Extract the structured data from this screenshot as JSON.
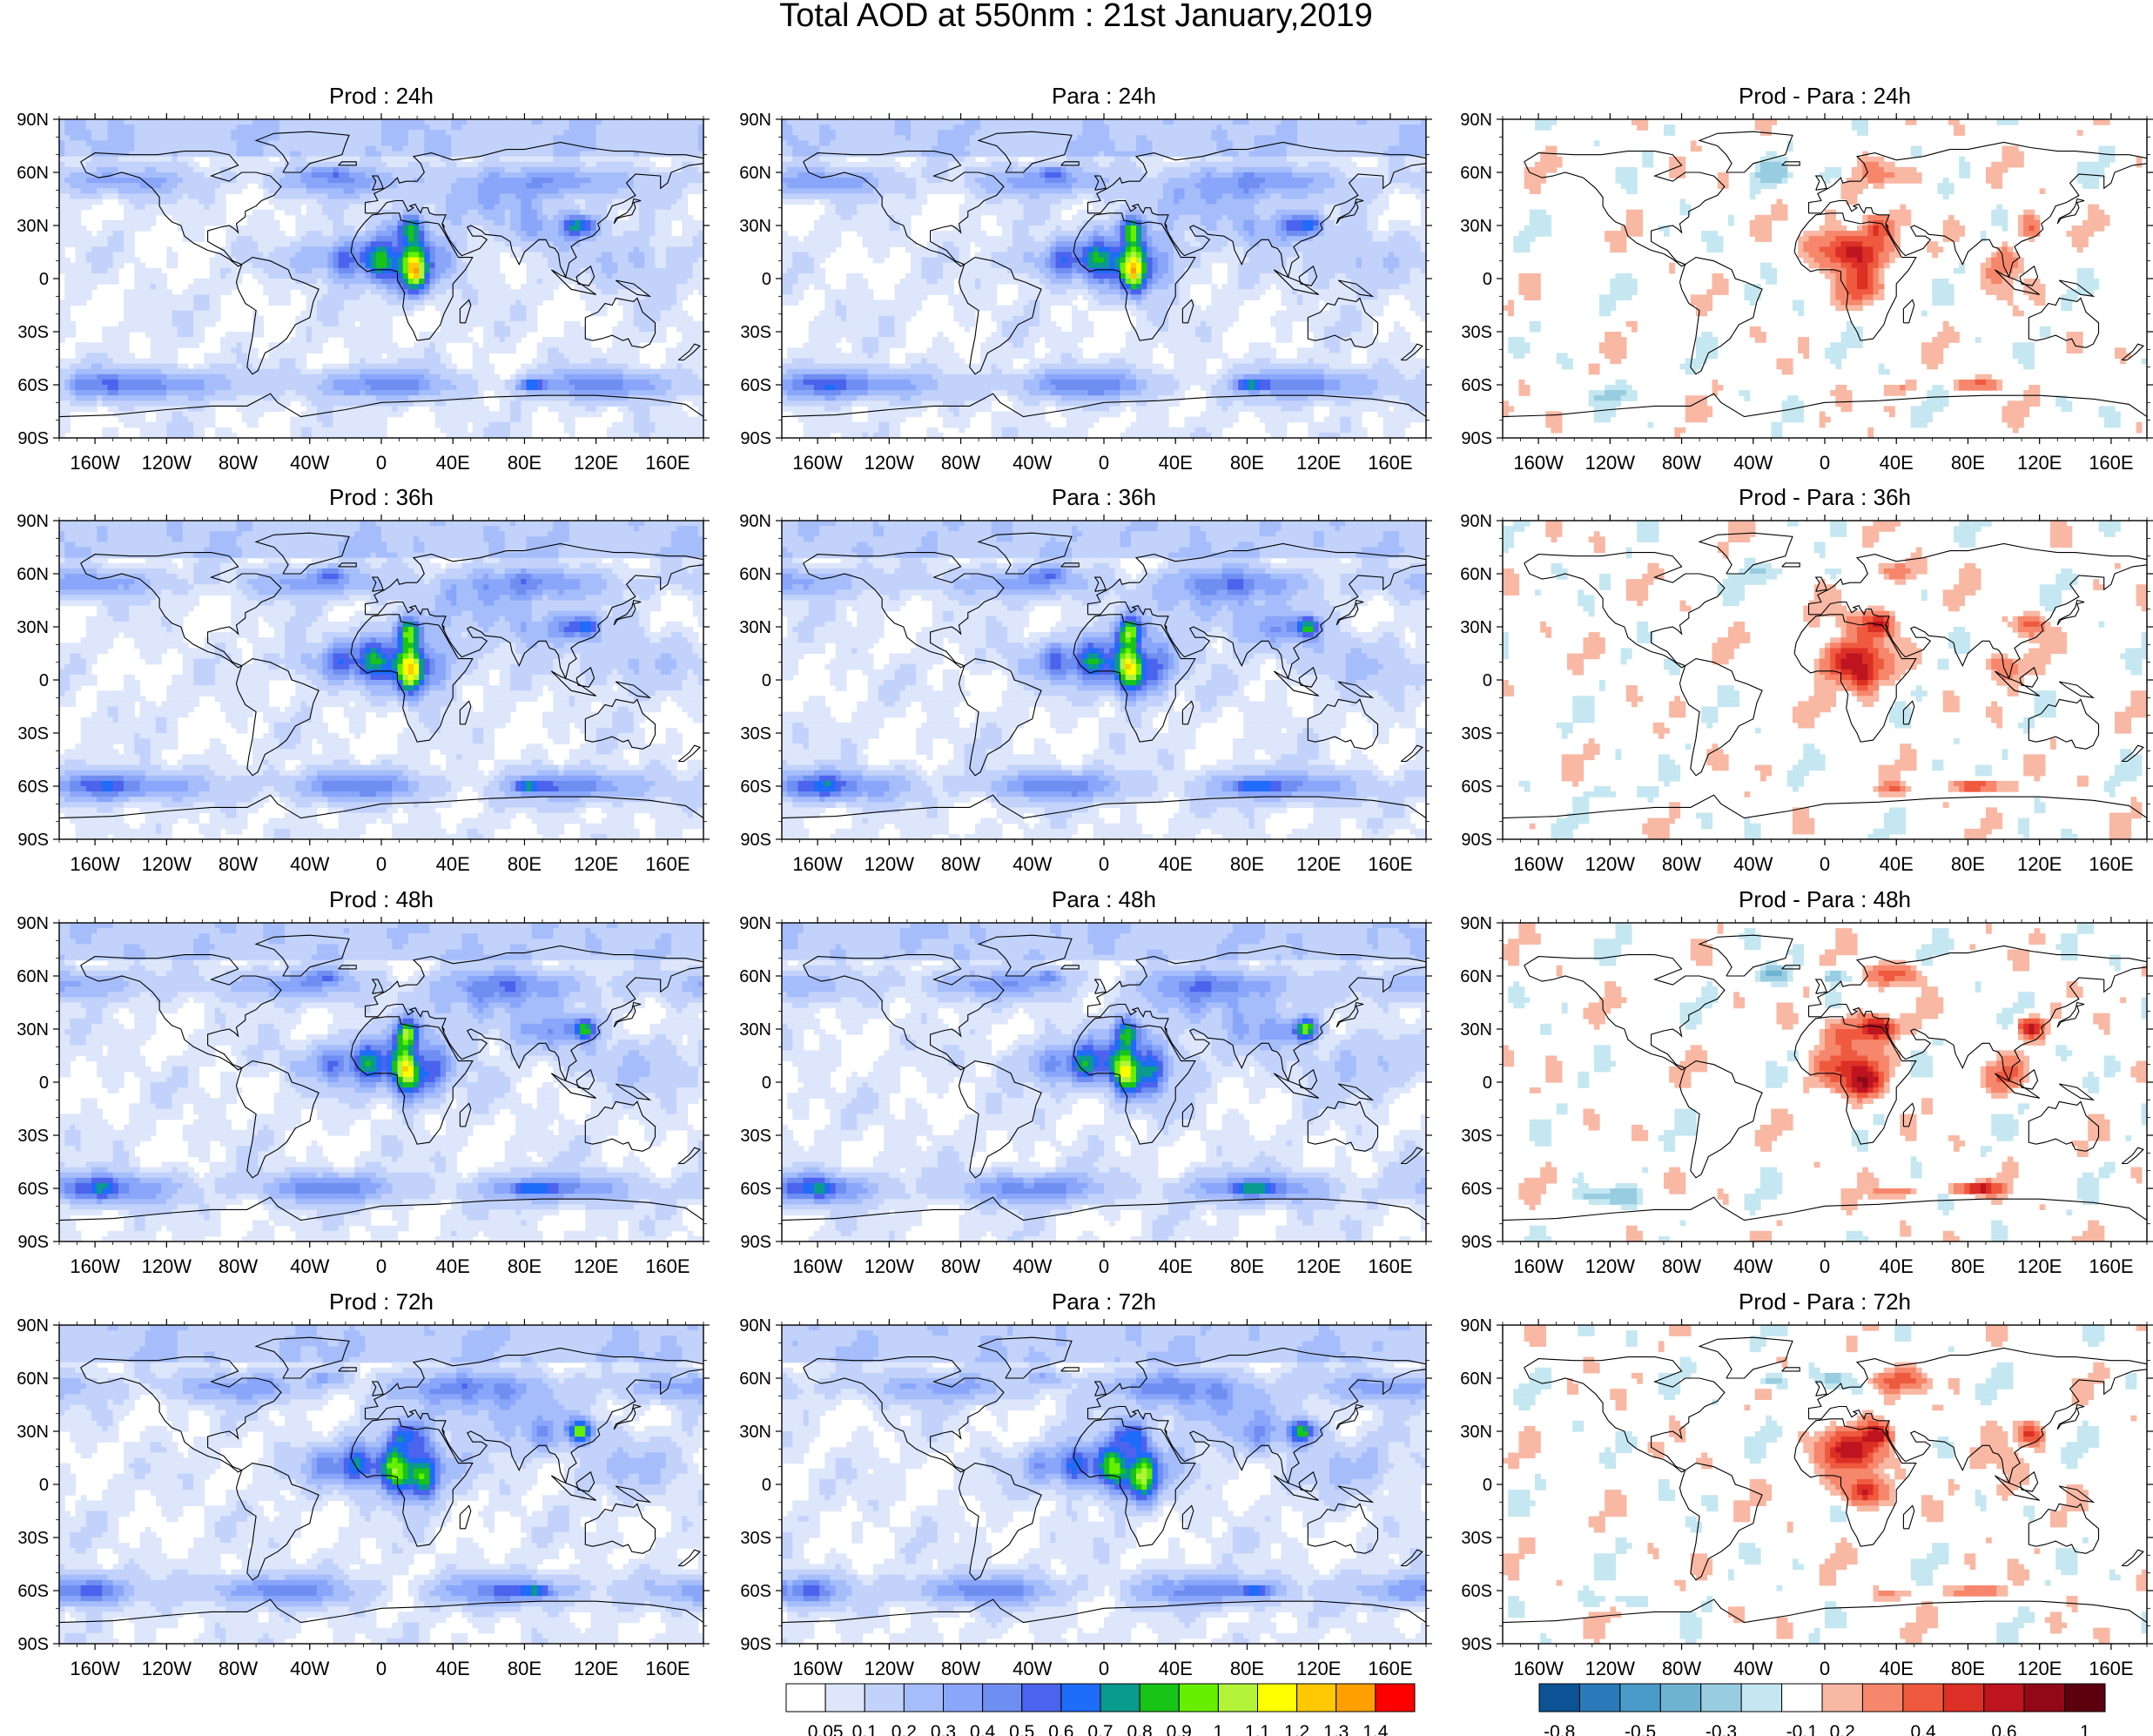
{
  "title": "Total AOD at 550nm : 21st January,2019",
  "lat_labels": [
    "90N",
    "60N",
    "30N",
    "0",
    "30S",
    "60S",
    "90S"
  ],
  "lon_labels": [
    "160W",
    "120W",
    "80W",
    "40W",
    "0",
    "40E",
    "80E",
    "120E",
    "160E"
  ],
  "panels": [
    {
      "title": "Prod : 24h",
      "kind": "aod",
      "lead_hours": 24,
      "row": 0,
      "col": 0
    },
    {
      "title": "Para : 24h",
      "kind": "aod",
      "lead_hours": 24,
      "row": 0,
      "col": 1
    },
    {
      "title": "Prod - Para : 24h",
      "kind": "diff",
      "lead_hours": 24,
      "row": 0,
      "col": 2
    },
    {
      "title": "Prod : 36h",
      "kind": "aod",
      "lead_hours": 36,
      "row": 1,
      "col": 0
    },
    {
      "title": "Para : 36h",
      "kind": "aod",
      "lead_hours": 36,
      "row": 1,
      "col": 1
    },
    {
      "title": "Prod - Para : 36h",
      "kind": "diff",
      "lead_hours": 36,
      "row": 1,
      "col": 2
    },
    {
      "title": "Prod : 48h",
      "kind": "aod",
      "lead_hours": 48,
      "row": 2,
      "col": 0
    },
    {
      "title": "Para : 48h",
      "kind": "aod",
      "lead_hours": 48,
      "row": 2,
      "col": 1
    },
    {
      "title": "Prod - Para : 48h",
      "kind": "diff",
      "lead_hours": 48,
      "row": 2,
      "col": 2
    },
    {
      "title": "Prod : 72h",
      "kind": "aod",
      "lead_hours": 72,
      "row": 3,
      "col": 0
    },
    {
      "title": "Para : 72h",
      "kind": "aod",
      "lead_hours": 72,
      "row": 3,
      "col": 1
    },
    {
      "title": "Prod - Para : 72h",
      "kind": "diff",
      "lead_hours": 72,
      "row": 3,
      "col": 2
    }
  ],
  "aod_colorbar": {
    "labels": [
      "0.05",
      "0.1",
      "0.2",
      "0.3",
      "0.4",
      "0.5",
      "0.6",
      "0.7",
      "0.8",
      "0.9",
      "1",
      "1.1",
      "1.2",
      "1.3",
      "1.4"
    ],
    "colors": [
      "#ffffff",
      "#dde6fb",
      "#c2d2fb",
      "#a6bdfb",
      "#8aa6fa",
      "#6f8ef2",
      "#4c63ee",
      "#1f6bfa",
      "#0a9a8e",
      "#18c418",
      "#66f000",
      "#b2f33a",
      "#ffff00",
      "#ffc800",
      "#ff9f00",
      "#ff0000"
    ]
  },
  "diff_colorbar": {
    "labels": [
      "-0.8",
      "-0.5",
      "-0.3",
      "-0.1",
      "0.2",
      "0.4",
      "0.6",
      "1"
    ],
    "colors": [
      "#0b5394",
      "#2b7bba",
      "#4a9bc9",
      "#6fb3d2",
      "#98cde1",
      "#c5e7f1",
      "#ffffff",
      "#f8b8a4",
      "#f6876c",
      "#ef5a3f",
      "#dc2f25",
      "#bd1420",
      "#920817",
      "#5c0010"
    ]
  },
  "aod_features": {
    "bands": [
      {
        "lat": -60,
        "amp": 0.4,
        "phase": 0.2
      },
      {
        "lat": 55,
        "amp": 0.3,
        "phase": 1.3
      }
    ],
    "blobs": [
      {
        "lon": 8,
        "lat": 12,
        "rlon": 30,
        "rlat": 14,
        "v": 0.6
      },
      {
        "lon": 18,
        "lat": 2,
        "rlon": 12,
        "rlat": 12,
        "v": 0.8
      },
      {
        "lon": 15,
        "lat": 28,
        "rlon": 8,
        "rlat": 8,
        "v": 0.75
      },
      {
        "lon": -20,
        "lat": 10,
        "rlon": 30,
        "rlat": 10,
        "v": 0.35
      },
      {
        "lon": 112,
        "lat": 30,
        "rlon": 8,
        "rlat": 6,
        "v": 0.85
      },
      {
        "lon": 90,
        "lat": 28,
        "rlon": 20,
        "rlat": 10,
        "v": 0.3
      },
      {
        "lon": 60,
        "lat": 45,
        "rlon": 40,
        "rlat": 15,
        "v": 0.25
      },
      {
        "lon": 84,
        "lat": -60,
        "rlon": 10,
        "rlat": 3,
        "v": 0.55
      },
      {
        "lon": -160,
        "lat": -60,
        "rlon": 15,
        "rlat": 8,
        "v": 0.3
      },
      {
        "lon": -30,
        "lat": 60,
        "rlon": 10,
        "rlat": 4,
        "v": 0.3
      },
      {
        "lon": 140,
        "lat": 10,
        "rlon": 30,
        "rlat": 15,
        "v": 0.2
      }
    ]
  },
  "diff_features": {
    "blobs": [
      {
        "lon": 15,
        "lat": 15,
        "rlon": 18,
        "rlat": 18,
        "v": 0.45
      },
      {
        "lon": 22,
        "lat": -2,
        "rlon": 8,
        "rlat": 8,
        "v": 0.5
      },
      {
        "lon": 30,
        "lat": 30,
        "rlon": 8,
        "rlat": 6,
        "v": 0.6
      },
      {
        "lon": 115,
        "lat": 30,
        "rlon": 7,
        "rlat": 6,
        "v": 0.5
      },
      {
        "lon": 85,
        "lat": -60,
        "rlon": 12,
        "rlat": 3,
        "v": 0.5
      },
      {
        "lon": 40,
        "lat": 60,
        "rlon": 15,
        "rlat": 6,
        "v": 0.3
      },
      {
        "lon": -30,
        "lat": 60,
        "rlon": 10,
        "rlat": 5,
        "v": -0.25
      },
      {
        "lon": 5,
        "lat": 60,
        "rlon": 6,
        "rlat": 4,
        "v": -0.25
      },
      {
        "lon": -120,
        "lat": -65,
        "rlon": 20,
        "rlat": 4,
        "v": -0.15
      },
      {
        "lon": 40,
        "lat": -62,
        "rlon": 10,
        "rlat": 3,
        "v": 0.25
      },
      {
        "lon": 100,
        "lat": 5,
        "rlon": 10,
        "rlat": 12,
        "v": 0.2
      }
    ]
  },
  "land_color": "#000000"
}
